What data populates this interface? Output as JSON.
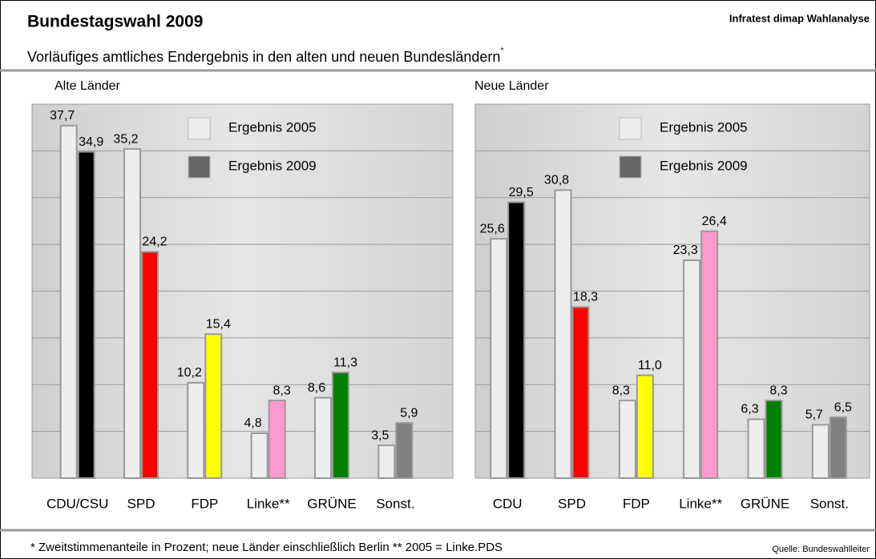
{
  "header": {
    "title": "Bundestagswahl 2009",
    "source": "Infratest dimap Wahlanalyse",
    "subtitle": "Vorläufiges amtliches Endergebnis in den alten und neuen Bundesländern",
    "subtitle_marker": "*"
  },
  "chart_data": [
    {
      "type": "bar",
      "title": "Alte Länder",
      "categories": [
        "CDU/CSU",
        "SPD",
        "FDP",
        "Linke**",
        "GRÜNE",
        "Sonst."
      ],
      "series": [
        {
          "name": "Ergebnis 2005",
          "color": "#eeeeee",
          "values": [
            37.7,
            35.2,
            10.2,
            4.8,
            8.6,
            3.5
          ],
          "value_labels": [
            "37,7",
            "35,2",
            "10,2",
            "4,8",
            "8,6",
            "3,5"
          ]
        },
        {
          "name": "Ergebnis 2009",
          "color": "#666666",
          "colors": [
            "#000000",
            "#ff0000",
            "#ffff00",
            "#ff99cc",
            "#008000",
            "#808080"
          ],
          "values": [
            34.9,
            24.2,
            15.4,
            8.3,
            11.3,
            5.9
          ],
          "value_labels": [
            "34,9",
            "24,2",
            "15,4",
            "8,3",
            "11,3",
            "5,9"
          ]
        }
      ],
      "ylim": [
        0,
        40
      ],
      "yticks": [
        0,
        5,
        10,
        15,
        20,
        25,
        30,
        35,
        40
      ],
      "grid": true
    },
    {
      "type": "bar",
      "title": "Neue Länder",
      "categories": [
        "CDU",
        "SPD",
        "FDP",
        "Linke**",
        "GRÜNE",
        "Sonst."
      ],
      "series": [
        {
          "name": "Ergebnis 2005",
          "color": "#eeeeee",
          "values": [
            25.6,
            30.8,
            8.3,
            23.3,
            6.3,
            5.7
          ],
          "value_labels": [
            "25,6",
            "30,8",
            "8,3",
            "23,3",
            "6,3",
            "5,7"
          ]
        },
        {
          "name": "Ergebnis 2009",
          "color": "#666666",
          "colors": [
            "#000000",
            "#ff0000",
            "#ffff00",
            "#ff99cc",
            "#008000",
            "#808080"
          ],
          "values": [
            29.5,
            18.3,
            11.0,
            26.4,
            8.3,
            6.5
          ],
          "value_labels": [
            "29,5",
            "18,3",
            "11,0",
            "26,4",
            "8,3",
            "6,5"
          ]
        }
      ],
      "ylim": [
        0,
        40
      ],
      "yticks": [
        0,
        5,
        10,
        15,
        20,
        25,
        30,
        35,
        40
      ],
      "grid": true
    }
  ],
  "footer": {
    "note": "* Zweitstimmenanteile in Prozent; neue Länder einschließlich Berlin ** 2005 = Linke.PDS",
    "source": "Quelle: Bundeswahlleiter"
  }
}
